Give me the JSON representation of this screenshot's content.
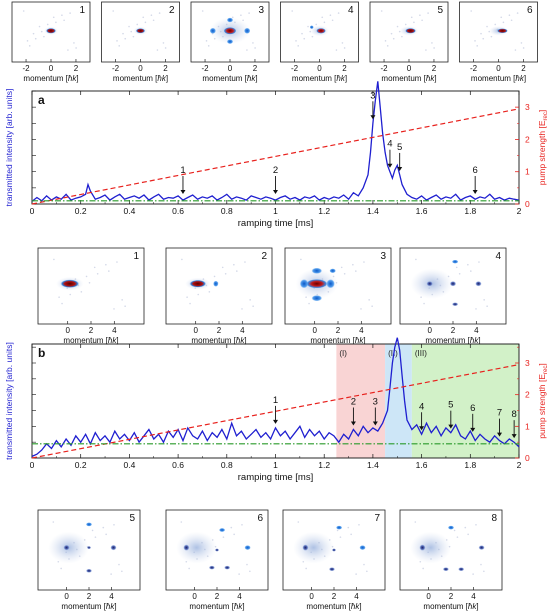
{
  "chart_data": [
    {
      "panel": "a",
      "type": "line",
      "xlabel": "ramping time [ms]",
      "ylabel": "transmitted intensity [arb. units]",
      "y2label": "pump strength [E",
      "y2label_sub": "rec",
      "y2label_end": "]",
      "xlim": [
        0,
        2
      ],
      "ylim2": [
        0,
        3.5
      ],
      "x_ticks": [
        "0",
        "0.2",
        "0.4",
        "0.6",
        "0.8",
        "1",
        "1.2",
        "1.4",
        "1.6",
        "1.8",
        "2"
      ],
      "y2_ticks": [
        "0",
        "1",
        "2",
        "3"
      ],
      "grid": false,
      "series": [
        {
          "role": "transmitted intensity",
          "color": "#1f1fd0",
          "x": [
            0,
            0.02,
            0.04,
            0.06,
            0.08,
            0.1,
            0.12,
            0.14,
            0.16,
            0.18,
            0.2,
            0.22,
            0.23,
            0.24,
            0.26,
            0.28,
            0.3,
            0.32,
            0.34,
            0.36,
            0.38,
            0.4,
            0.42,
            0.44,
            0.46,
            0.48,
            0.5,
            0.52,
            0.54,
            0.56,
            0.58,
            0.6,
            0.62,
            0.64,
            0.66,
            0.68,
            0.7,
            0.72,
            0.74,
            0.76,
            0.78,
            0.8,
            0.82,
            0.84,
            0.86,
            0.88,
            0.9,
            0.92,
            0.94,
            0.96,
            0.98,
            1,
            1.02,
            1.04,
            1.06,
            1.08,
            1.1,
            1.12,
            1.14,
            1.16,
            1.18,
            1.2,
            1.22,
            1.24,
            1.26,
            1.28,
            1.3,
            1.32,
            1.34,
            1.36,
            1.38,
            1.39,
            1.4,
            1.41,
            1.42,
            1.43,
            1.44,
            1.45,
            1.46,
            1.47,
            1.48,
            1.49,
            1.5,
            1.51,
            1.52,
            1.54,
            1.56,
            1.58,
            1.6,
            1.62,
            1.64,
            1.66,
            1.68,
            1.7,
            1.72,
            1.74,
            1.76,
            1.78,
            1.8,
            1.82,
            1.84,
            1.86,
            1.88,
            1.9,
            1.92,
            1.94,
            1.96,
            1.98,
            2
          ],
          "y": [
            0.08,
            0.2,
            0.1,
            0.25,
            0.12,
            0.22,
            0.15,
            0.3,
            0.12,
            0.18,
            0.22,
            0.3,
            0.6,
            0.4,
            0.15,
            0.2,
            0.28,
            0.12,
            0.22,
            0.3,
            0.15,
            0.2,
            0.25,
            0.18,
            0.28,
            0.12,
            0.22,
            0.3,
            0.15,
            0.2,
            0.18,
            0.25,
            0.12,
            0.2,
            0.28,
            0.15,
            0.22,
            0.18,
            0.25,
            0.12,
            0.2,
            0.3,
            0.15,
            0.22,
            0.18,
            0.12,
            0.25,
            0.2,
            0.15,
            0.22,
            0.18,
            0.12,
            0.2,
            0.25,
            0.15,
            0.2,
            0.12,
            0.22,
            0.18,
            0.25,
            0.12,
            0.2,
            0.15,
            0.22,
            0.18,
            0.28,
            0.15,
            0.35,
            0.25,
            0.5,
            0.9,
            1.6,
            2.5,
            3.2,
            3.8,
            3.0,
            2.2,
            1.6,
            1.2,
            1.0,
            0.8,
            1.05,
            1.2,
            0.9,
            0.6,
            0.3,
            0.2,
            0.15,
            0.25,
            0.12,
            0.2,
            0.28,
            0.15,
            0.22,
            0.18,
            0.3,
            0.12,
            0.2,
            0.25,
            0.15,
            0.22,
            0.18,
            0.3,
            0.15,
            0.2,
            0.12,
            0.18,
            0.15,
            0.12
          ]
        },
        {
          "role": "pump strength",
          "color": "#e8221e",
          "style": "dashed",
          "x": [
            0,
            2
          ],
          "y": [
            0,
            2.95
          ]
        },
        {
          "role": "baseline",
          "color": "#2a9a2a",
          "style": "dash-dot",
          "x": [
            0,
            2
          ],
          "y": [
            0.1,
            0.1
          ]
        }
      ],
      "annotations": [
        {
          "label": "1",
          "x": 0.62
        },
        {
          "label": "2",
          "x": 1.0
        },
        {
          "label": "3",
          "x": 1.4
        },
        {
          "label": "4",
          "x": 1.47
        },
        {
          "label": "5",
          "x": 1.51
        },
        {
          "label": "6",
          "x": 1.82
        }
      ]
    },
    {
      "panel": "b",
      "type": "line",
      "xlabel": "ramping time [ms]",
      "ylabel": "transmitted intensity [arb. units]",
      "y2label": "pump strength [E",
      "y2label_sub": "rec",
      "y2label_end": "]",
      "xlim": [
        0,
        2
      ],
      "ylim2": [
        0,
        3.6
      ],
      "x_ticks": [
        "0",
        "0.2",
        "0.4",
        "0.6",
        "0.8",
        "1",
        "1.2",
        "1.4",
        "1.6",
        "1.8",
        "2"
      ],
      "y2_ticks": [
        "0",
        "1",
        "2",
        "3"
      ],
      "grid": false,
      "regions": [
        {
          "label": "(I)",
          "x0": 1.25,
          "x1": 1.45,
          "color": "#f9d4d4"
        },
        {
          "label": "(II)",
          "x0": 1.45,
          "x1": 1.56,
          "color": "#cde6f7"
        },
        {
          "label": "(III)",
          "x0": 1.56,
          "x1": 2.0,
          "color": "#d2f1c8"
        }
      ],
      "series": [
        {
          "role": "transmitted intensity",
          "color": "#1f1fd0",
          "x": [
            0,
            0.02,
            0.04,
            0.06,
            0.08,
            0.1,
            0.12,
            0.14,
            0.16,
            0.18,
            0.2,
            0.22,
            0.24,
            0.26,
            0.28,
            0.3,
            0.32,
            0.34,
            0.36,
            0.38,
            0.4,
            0.42,
            0.44,
            0.46,
            0.48,
            0.5,
            0.52,
            0.54,
            0.56,
            0.58,
            0.6,
            0.62,
            0.64,
            0.66,
            0.68,
            0.7,
            0.72,
            0.74,
            0.76,
            0.78,
            0.8,
            0.82,
            0.84,
            0.86,
            0.88,
            0.9,
            0.92,
            0.94,
            0.96,
            0.98,
            1,
            1.02,
            1.04,
            1.06,
            1.08,
            1.1,
            1.12,
            1.14,
            1.16,
            1.18,
            1.2,
            1.22,
            1.24,
            1.26,
            1.28,
            1.3,
            1.32,
            1.34,
            1.36,
            1.38,
            1.4,
            1.42,
            1.44,
            1.46,
            1.47,
            1.48,
            1.49,
            1.5,
            1.51,
            1.52,
            1.53,
            1.54,
            1.56,
            1.58,
            1.6,
            1.62,
            1.64,
            1.66,
            1.68,
            1.7,
            1.72,
            1.74,
            1.76,
            1.78,
            1.8,
            1.82,
            1.84,
            1.86,
            1.88,
            1.9,
            1.92,
            1.94,
            1.96,
            1.98,
            2
          ],
          "y": [
            0.05,
            0.12,
            0.25,
            0.45,
            0.3,
            0.55,
            0.35,
            0.6,
            0.4,
            0.7,
            0.5,
            0.75,
            0.45,
            0.8,
            0.55,
            0.7,
            0.5,
            0.85,
            0.6,
            0.75,
            0.55,
            0.8,
            0.5,
            0.7,
            0.9,
            0.6,
            0.75,
            0.5,
            0.85,
            0.65,
            0.9,
            0.55,
            0.95,
            0.7,
            0.6,
            0.85,
            0.55,
            0.8,
            0.65,
            0.9,
            0.6,
            1.1,
            0.7,
            0.85,
            0.6,
            0.75,
            0.9,
            0.65,
            0.8,
            0.6,
            0.95,
            0.7,
            0.85,
            0.6,
            0.8,
            1.0,
            0.65,
            0.9,
            0.7,
            0.85,
            0.6,
            0.8,
            0.7,
            0.5,
            0.75,
            0.6,
            0.9,
            0.7,
            1.0,
            0.8,
            0.95,
            0.85,
            1.1,
            1.5,
            2.2,
            3.0,
            3.5,
            3.8,
            3.4,
            2.6,
            1.8,
            1.2,
            0.9,
            1.05,
            0.75,
            1.1,
            0.8,
            1.0,
            0.7,
            0.95,
            0.8,
            1.05,
            0.7,
            0.6,
            0.85,
            0.55,
            0.75,
            0.6,
            0.5,
            0.7,
            0.55,
            0.45,
            0.6,
            0.5,
            0.35
          ]
        },
        {
          "role": "pump strength",
          "color": "#e8221e",
          "style": "dashed",
          "x": [
            0,
            2
          ],
          "y": [
            0,
            2.95
          ]
        },
        {
          "role": "baseline",
          "color": "#2a9a2a",
          "style": "dash-dot",
          "x": [
            0,
            2
          ],
          "y": [
            0.45,
            0.45
          ]
        }
      ],
      "annotations": [
        {
          "label": "1",
          "x": 1.0
        },
        {
          "label": "2",
          "x": 1.32
        },
        {
          "label": "3",
          "x": 1.41
        },
        {
          "label": "4",
          "x": 1.6
        },
        {
          "label": "5",
          "x": 1.72
        },
        {
          "label": "6",
          "x": 1.81
        },
        {
          "label": "7",
          "x": 1.92
        },
        {
          "label": "8",
          "x": 1.98
        }
      ]
    }
  ],
  "images_top": {
    "xlabel": "momentum [",
    "unit": "ħk",
    "xlabel_end": "]",
    "ticks": [
      "-2",
      "0",
      "2"
    ],
    "labels": [
      "1",
      "2",
      "3",
      "4",
      "5",
      "6"
    ]
  },
  "images_mid": {
    "xlabel": "momentum [",
    "unit": "ħk",
    "xlabel_end": "]",
    "ticks": [
      "0",
      "2",
      "4"
    ],
    "labels": [
      "1",
      "2",
      "3",
      "4"
    ]
  },
  "images_bot": {
    "xlabel": "momentum [",
    "unit": "ħk",
    "xlabel_end": "]",
    "ticks": [
      "0",
      "2",
      "4"
    ],
    "labels": [
      "5",
      "6",
      "7",
      "8"
    ]
  },
  "colors": {
    "intensity": "#1f1fd0",
    "pump": "#e8221e",
    "baseline": "#2a9a2a",
    "cloud_core": "#8b0a0a",
    "cloud_mid": "#1c6fd6",
    "cloud_halo": "#9fb6d9"
  }
}
